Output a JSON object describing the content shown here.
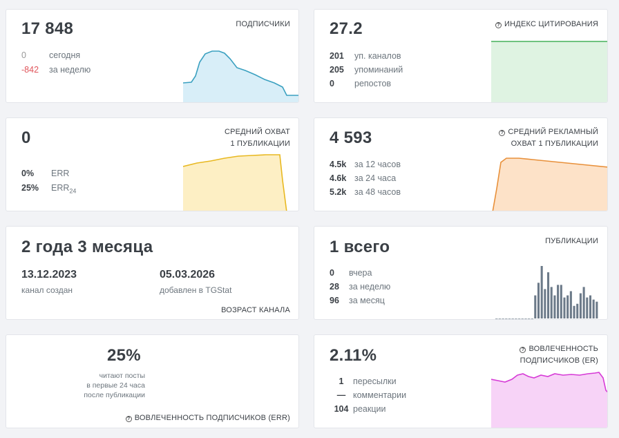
{
  "subscribers": {
    "value": "17 848",
    "label": "ПОДПИСЧИКИ",
    "today_value": "0",
    "today_label": "сегодня",
    "week_value": "-842",
    "week_label": "за неделю",
    "sparkline_color": "#5bc0de"
  },
  "citation": {
    "value": "27.2",
    "label": "ИНДЕКС ЦИТИРОВАНИЯ",
    "icon": "question-circle-icon",
    "rows": [
      {
        "value": "201",
        "label": "уп. каналов"
      },
      {
        "value": "205",
        "label": "упоминаний"
      },
      {
        "value": "0",
        "label": "репостов"
      }
    ],
    "sparkline_color": "#5cb85c"
  },
  "avg_reach": {
    "value": "0",
    "label_line1": "СРЕДНИЙ ОХВАТ",
    "label_line2": "1 ПУБЛИКАЦИИ",
    "err_value": "0%",
    "err_label": "ERR",
    "err24_value": "25%",
    "err24_label": "ERR",
    "err24_sub": "24",
    "sparkline_color": "#f0c23c"
  },
  "ad_reach": {
    "value": "4 593",
    "label_line1": "СРЕДНИЙ РЕКЛАМНЫЙ",
    "label_line2": "ОХВАТ 1 ПУБЛИКАЦИИ",
    "icon": "question-circle-icon",
    "rows": [
      {
        "value": "4.5k",
        "label": "за 12 часов"
      },
      {
        "value": "4.6k",
        "label": "за 24 часа"
      },
      {
        "value": "5.2k",
        "label": "за 48 часов"
      }
    ],
    "sparkline_color": "#f0a050"
  },
  "age": {
    "value": "2 года 3 месяца",
    "created_date": "13.12.2023",
    "created_label": "канал создан",
    "added_date": "05.03.2026",
    "added_label": "добавлен в TGStat",
    "label": "ВОЗРАСТ КАНАЛА"
  },
  "posts": {
    "value": "1 всего",
    "label": "ПУБЛИКАЦИИ",
    "rows": [
      {
        "value": "0",
        "label": "вчера"
      },
      {
        "value": "28",
        "label": "за неделю"
      },
      {
        "value": "96",
        "label": "за месяц"
      }
    ],
    "bars": [
      0,
      0,
      0,
      0,
      0,
      0,
      0,
      0,
      0,
      0,
      0,
      0,
      11,
      17,
      25,
      14,
      22,
      15,
      11,
      16,
      16,
      10,
      11,
      13,
      6,
      7,
      12,
      15,
      10,
      11,
      9,
      8
    ],
    "bar_color": "#6c7a89"
  },
  "err_card": {
    "value": "25%",
    "desc_line1": "читают посты",
    "desc_line2": "в первые 24 часа",
    "desc_line3": "после публикации",
    "label": "ВОВЛЕЧЕННОСТЬ ПОДПИСЧИКОВ (ERR)",
    "icon": "question-circle-icon"
  },
  "er": {
    "value": "2.11%",
    "label_line1": "ВОВЛЕЧЕННОСТЬ",
    "label_line2": "ПОДПИСЧИКОВ (ER)",
    "icon": "question-circle-icon",
    "rows": [
      {
        "value": "1",
        "label": "пересылки"
      },
      {
        "value": "—",
        "label": "комментарии"
      },
      {
        "value": "104",
        "label": "реакции"
      }
    ],
    "sparkline_color": "#e040e0"
  }
}
